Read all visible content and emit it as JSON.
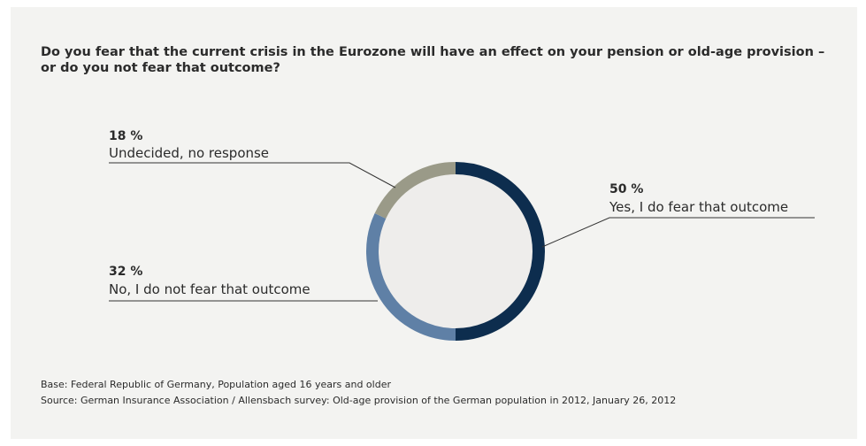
{
  "question": "Do you fear that the current crisis in the Eurozone will have an effect on your pension or old-age provision – or do you not fear that outcome?",
  "footnotes": {
    "base": "Base: Federal Republic of Germany, Population aged 16 years and older",
    "source": "Source: German Insurance Association / Allensbach survey: Old-age provision of the German population in 2012, January 26, 2012"
  },
  "colors": {
    "background": "#f3f3f1",
    "center": "#eeedeb",
    "yes": "#0d2d4e",
    "no": "#5f80a6",
    "undecided": "#9a9a88"
  },
  "chart_data": {
    "type": "pie",
    "title": "Do you fear that the current crisis in the Eurozone will have an effect on your pension or old-age provision – or do you not fear that outcome?",
    "slices": [
      {
        "label": "Yes, I do fear that outcome",
        "value": 50,
        "value_label": "50 %",
        "color": "#0d2d4e"
      },
      {
        "label": "No, I do not fear that outcome",
        "value": 32,
        "value_label": "32 %",
        "color": "#5f80a6"
      },
      {
        "label": "Undecided, no response",
        "value": 18,
        "value_label": "18 %",
        "color": "#9a9a88"
      }
    ]
  }
}
